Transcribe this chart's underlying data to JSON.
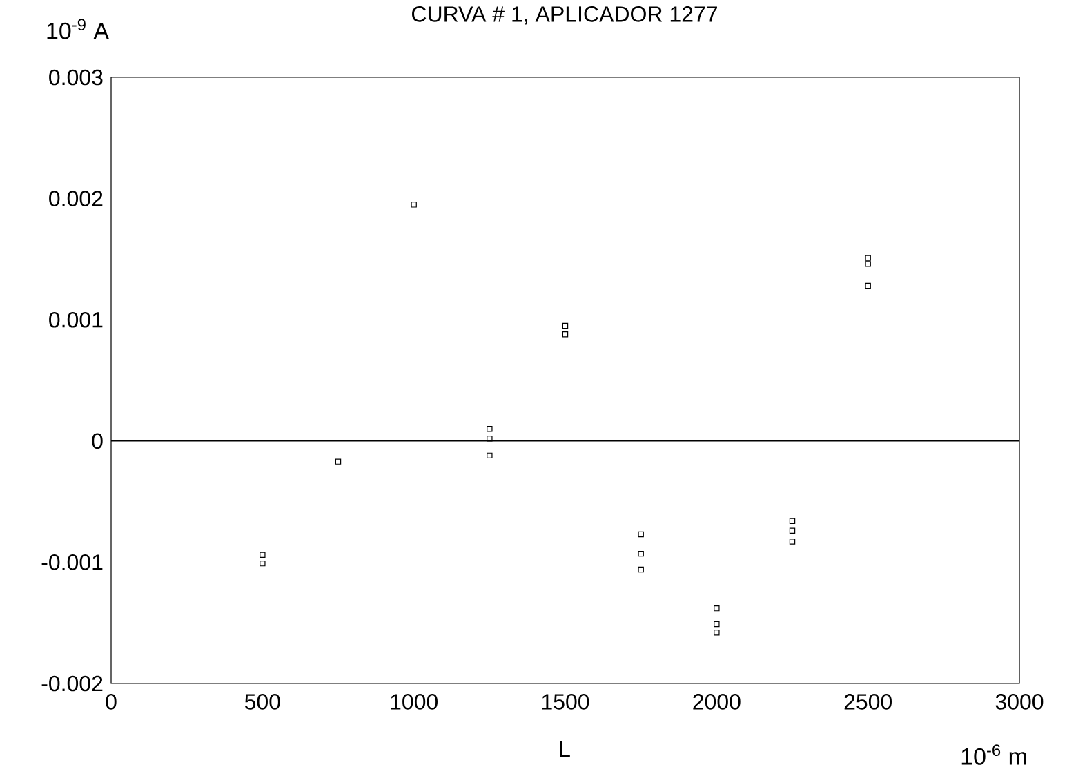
{
  "chart_data": {
    "type": "scatter",
    "title": "CURVA # 1, APLICADOR 1277",
    "xlabel": "L",
    "ylabel": "10$^{-9}$ A",
    "annotations": [
      "10$^{-6}$ m"
    ],
    "x": [
      500,
      500,
      750,
      1000,
      1250,
      1250,
      1250,
      1500,
      1500,
      1750,
      1750,
      1750,
      2000,
      2000,
      2000,
      2250,
      2250,
      2250,
      2500,
      2500,
      2500
    ],
    "values": [
      -0.00094,
      -0.00101,
      -0.00017,
      0.00195,
      0.0001,
      2e-05,
      -0.00012,
      0.00095,
      0.00088,
      -0.00077,
      -0.00093,
      -0.00106,
      -0.00138,
      -0.00151,
      -0.00158,
      -0.00066,
      -0.00074,
      -0.00083,
      0.00151,
      0.00146,
      0.00128
    ],
    "color": "#000000",
    "marker": "square",
    "grid": false,
    "xlim": [
      0,
      3000
    ],
    "ylim": [
      -0.002,
      0.003
    ],
    "xticks": [
      0,
      500,
      1000,
      1500,
      2000,
      2500,
      3000
    ],
    "yticks": [
      -0.002,
      -0.001,
      0,
      0.001,
      0.002,
      0.003
    ],
    "ref_lines": [
      {
        "axis": "y",
        "value": 0,
        "color": "#000000"
      }
    ]
  }
}
